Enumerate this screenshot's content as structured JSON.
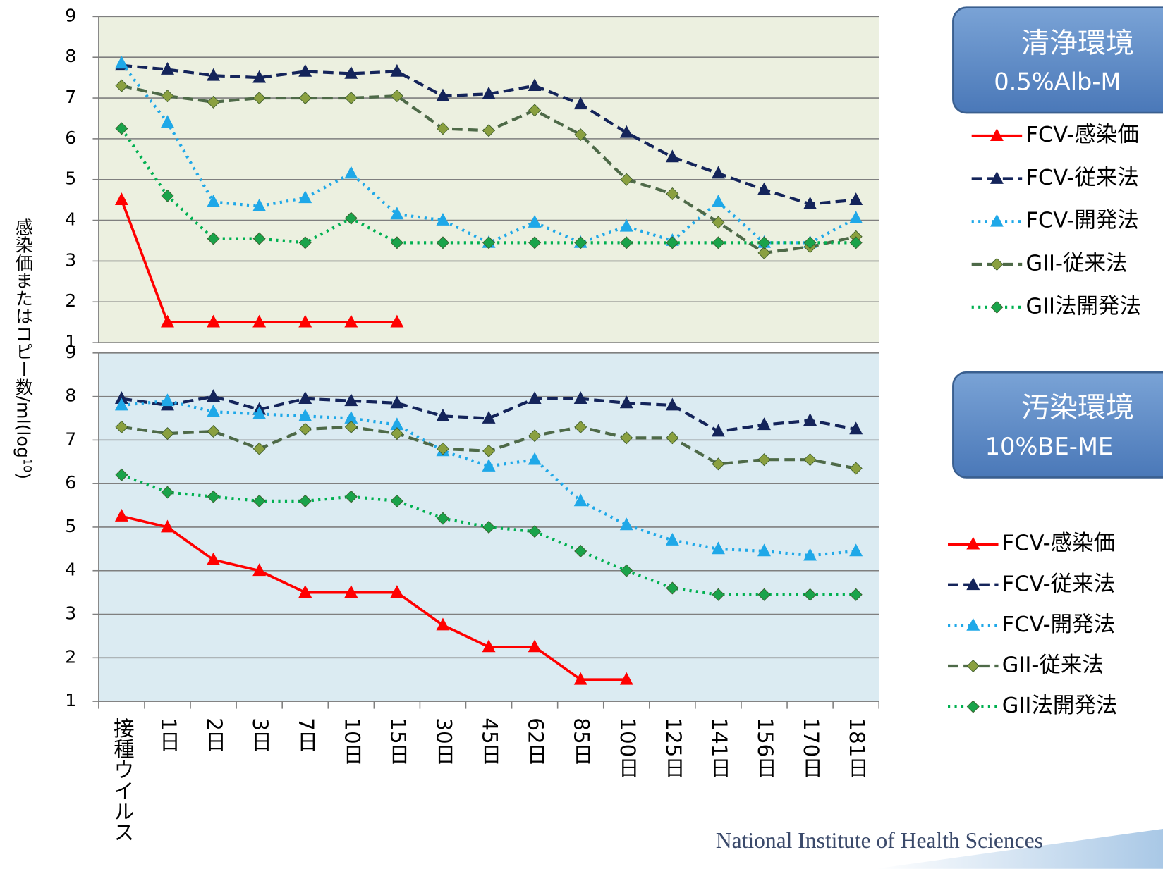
{
  "y_label": [
    "感染価またはコピー数/ml(log",
    "10",
    ")"
  ],
  "footer": "National Institute of Health Sciences",
  "chart_data": [
    {
      "type": "line",
      "box_title": "清浄環境",
      "box_subtitle": "0.5%Alb-M",
      "background": "#ecf0e0",
      "ylim": [
        1,
        9
      ],
      "yticks": [
        1,
        2,
        3,
        4,
        5,
        6,
        7,
        8,
        9
      ],
      "grid": true,
      "series": [
        {
          "name": "FCV-感染価",
          "color": "#ff0000",
          "dash": "solid",
          "marker": "triangle",
          "marker_color": "#ff0000",
          "values": [
            4.5,
            1.5,
            1.5,
            1.5,
            1.5,
            1.5,
            1.5,
            null,
            null,
            null,
            null,
            null,
            null,
            null,
            null,
            null,
            null
          ]
        },
        {
          "name": "FCV-従来法",
          "color": "#14245a",
          "dash": "dashed",
          "marker": "triangle",
          "marker_color": "#14245a",
          "values": [
            7.8,
            7.7,
            7.55,
            7.5,
            7.65,
            7.6,
            7.65,
            7.05,
            7.1,
            7.3,
            6.85,
            6.15,
            5.55,
            5.15,
            4.75,
            4.4,
            4.5
          ]
        },
        {
          "name": "FCV-開発法",
          "color": "#1fa8e8",
          "dash": "dotted",
          "marker": "triangle",
          "marker_color": "#1fa8e8",
          "values": [
            7.85,
            6.4,
            4.45,
            4.35,
            4.55,
            5.15,
            4.15,
            4.0,
            3.45,
            3.95,
            3.45,
            3.85,
            3.5,
            4.45,
            3.45,
            3.45,
            4.05
          ]
        },
        {
          "name": "GII-従来法",
          "color": "#4e6a48",
          "dash": "dashed",
          "marker": "diamond",
          "marker_color": "#8aa040",
          "values": [
            7.3,
            7.05,
            6.9,
            7.0,
            7.0,
            7.0,
            7.05,
            6.25,
            6.2,
            6.7,
            6.1,
            5.0,
            4.65,
            3.95,
            3.2,
            3.35,
            3.6
          ]
        },
        {
          "name": "GII法開発法",
          "color": "#00b050",
          "dash": "dotted",
          "marker": "diamond",
          "marker_color": "#1aa34a",
          "values": [
            6.25,
            4.6,
            3.55,
            3.55,
            3.45,
            4.05,
            3.45,
            3.45,
            3.45,
            3.45,
            3.45,
            3.45,
            3.45,
            3.45,
            3.45,
            3.45,
            3.45
          ]
        }
      ]
    },
    {
      "type": "line",
      "box_title": "汚染環境",
      "box_subtitle": "10%BE-ME",
      "background": "#dbebf2",
      "categories": [
        "接種ウイルス",
        "1日",
        "2日",
        "3日",
        "7日",
        "10日",
        "15日",
        "30日",
        "45日",
        "62日",
        "85日",
        "100日",
        "125日",
        "141日",
        "156日",
        "170日",
        "181日"
      ],
      "ylim": [
        1,
        9
      ],
      "yticks": [
        1,
        2,
        3,
        4,
        5,
        6,
        7,
        8,
        9
      ],
      "grid": true,
      "series": [
        {
          "name": "FCV-感染価",
          "color": "#ff0000",
          "dash": "solid",
          "marker": "triangle",
          "marker_color": "#ff0000",
          "values": [
            5.25,
            5.0,
            4.25,
            4.0,
            3.5,
            3.5,
            3.5,
            2.75,
            2.25,
            2.25,
            1.5,
            1.5,
            null,
            null,
            null,
            null,
            null
          ]
        },
        {
          "name": "FCV-従来法",
          "color": "#14245a",
          "dash": "dashed",
          "marker": "triangle",
          "marker_color": "#14245a",
          "values": [
            7.95,
            7.8,
            8.0,
            7.7,
            7.95,
            7.9,
            7.85,
            7.55,
            7.5,
            7.95,
            7.95,
            7.85,
            7.8,
            7.2,
            7.35,
            7.45,
            7.25
          ]
        },
        {
          "name": "FCV-開発法",
          "color": "#1fa8e8",
          "dash": "dotted",
          "marker": "triangle",
          "marker_color": "#1fa8e8",
          "values": [
            7.8,
            7.9,
            7.65,
            7.6,
            7.55,
            7.5,
            7.35,
            6.75,
            6.4,
            6.55,
            5.6,
            5.05,
            4.7,
            4.5,
            4.45,
            4.35,
            4.45
          ]
        },
        {
          "name": "GII-従来法",
          "color": "#4e6a48",
          "dash": "dashed",
          "marker": "diamond",
          "marker_color": "#8aa040",
          "values": [
            7.3,
            7.15,
            7.2,
            6.8,
            7.25,
            7.3,
            7.15,
            6.8,
            6.75,
            7.1,
            7.3,
            7.05,
            7.05,
            6.45,
            6.55,
            6.55,
            6.35
          ]
        },
        {
          "name": "GII法開発法",
          "color": "#00b050",
          "dash": "dotted",
          "marker": "diamond",
          "marker_color": "#1aa34a",
          "values": [
            6.2,
            5.8,
            5.7,
            5.6,
            5.6,
            5.7,
            5.6,
            5.2,
            5.0,
            4.9,
            4.45,
            4.0,
            3.6,
            3.45,
            3.45,
            3.45,
            3.45
          ]
        }
      ]
    }
  ]
}
